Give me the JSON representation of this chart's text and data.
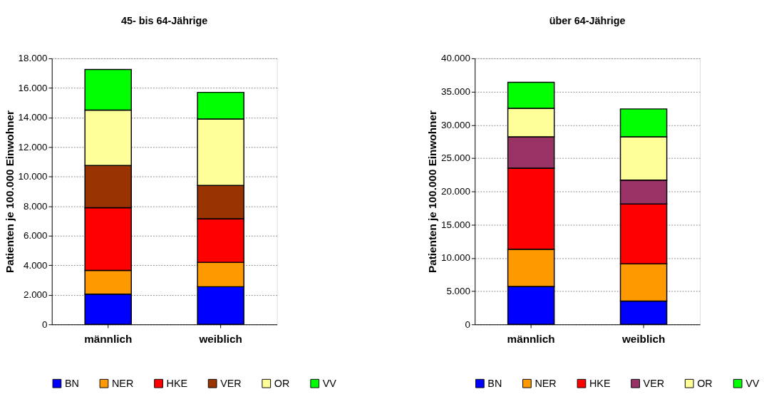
{
  "chart_data": [
    {
      "type": "bar",
      "title": "45- bis 64-Jährige",
      "ylabel": "Patienten je 100.000 Einwohner",
      "categories": [
        "männlich",
        "weiblich"
      ],
      "stacked": true,
      "grid": "y",
      "legend": "bottom",
      "ylim": [
        0,
        18000
      ],
      "yticks": [
        0,
        {
          "value": 2000,
          "label": "2.000"
        },
        {
          "value": 4000,
          "label": "4.000"
        },
        {
          "value": 6000,
          "label": "6.000"
        },
        {
          "value": 8000,
          "label": "8.000"
        },
        {
          "value": 10000,
          "label": "10.000"
        },
        {
          "value": 12000,
          "label": "12.000"
        },
        {
          "value": 14000,
          "label": "14.000"
        },
        {
          "value": 16000,
          "label": "16.000"
        },
        {
          "value": 18000,
          "label": "18.000"
        }
      ],
      "series": [
        {
          "name": "BN",
          "color": "#0000ff",
          "values": [
            2050,
            2550
          ]
        },
        {
          "name": "NER",
          "color": "#ff9900",
          "values": [
            1600,
            1650
          ]
        },
        {
          "name": "HKE",
          "color": "#ff0000",
          "values": [
            4250,
            2950
          ]
        },
        {
          "name": "VER",
          "color": "#993300",
          "values": [
            2850,
            2250
          ]
        },
        {
          "name": "OR",
          "color": "#ffff99",
          "values": [
            3750,
            4500
          ]
        },
        {
          "name": "VV",
          "color": "#00ff00",
          "values": [
            2750,
            1800
          ]
        }
      ]
    },
    {
      "type": "bar",
      "title": "über 64-Jährige",
      "ylabel": "Patienten je 100.000 Einwohner",
      "categories": [
        "männlich",
        "weiblich"
      ],
      "stacked": true,
      "grid": "y",
      "legend": "bottom",
      "ylim": [
        0,
        40000
      ],
      "yticks": [
        0,
        {
          "value": 5000,
          "label": "5.000"
        },
        {
          "value": 10000,
          "label": "10.000"
        },
        {
          "value": 15000,
          "label": "15.000"
        },
        {
          "value": 20000,
          "label": "20.000"
        },
        {
          "value": 25000,
          "label": "25.000"
        },
        {
          "value": 30000,
          "label": "30.000"
        },
        {
          "value": 35000,
          "label": "35.000"
        },
        {
          "value": 40000,
          "label": "40.000"
        }
      ],
      "series": [
        {
          "name": "BN",
          "color": "#0000ff",
          "values": [
            5700,
            3500
          ]
        },
        {
          "name": "NER",
          "color": "#ff9900",
          "values": [
            5600,
            5600
          ]
        },
        {
          "name": "HKE",
          "color": "#ff0000",
          "values": [
            12200,
            9000
          ]
        },
        {
          "name": "VER",
          "color": "#993366",
          "values": [
            4700,
            3600
          ]
        },
        {
          "name": "OR",
          "color": "#ffff99",
          "values": [
            4300,
            6500
          ]
        },
        {
          "name": "VV",
          "color": "#00ff00",
          "values": [
            3900,
            4200
          ]
        }
      ]
    }
  ]
}
